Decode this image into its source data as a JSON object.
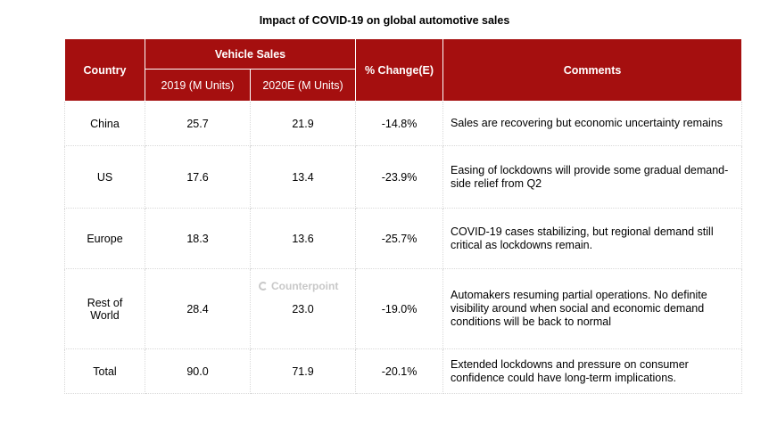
{
  "chart_data": {
    "type": "table",
    "title": "Impact of COVID-19 on global automotive sales",
    "headers": {
      "country": "Country",
      "vehicle_sales": "Vehicle Sales",
      "col_2019": "2019 (M Units)",
      "col_2020": "2020E (M Units)",
      "change": "% Change(E)",
      "comments": "Comments"
    },
    "rows": [
      {
        "country": "China",
        "v2019": "25.7",
        "v2020": "21.9",
        "change": "-14.8%",
        "comment": "Sales are recovering but economic uncertainty remains"
      },
      {
        "country": "US",
        "v2019": "17.6",
        "v2020": "13.4",
        "change": "-23.9%",
        "comment": "Easing of lockdowns will provide some gradual demand-side relief from Q2"
      },
      {
        "country": "Europe",
        "v2019": "18.3",
        "v2020": "13.6",
        "change": "-25.7%",
        "comment": "COVID-19 cases stabilizing, but regional demand still critical as lockdowns remain."
      },
      {
        "country": "Rest of World",
        "v2019": "28.4",
        "v2020": "23.0",
        "change": "-19.0%",
        "comment": "Automakers resuming partial operations. No definite visibility around when social and economic demand conditions will be back to normal"
      },
      {
        "country": "Total",
        "v2019": "90.0",
        "v2020": "71.9",
        "change": "-20.1%",
        "comment": "Extended lockdowns and pressure on consumer confidence could have long-term implications."
      }
    ]
  },
  "watermark": "Counterpoint"
}
